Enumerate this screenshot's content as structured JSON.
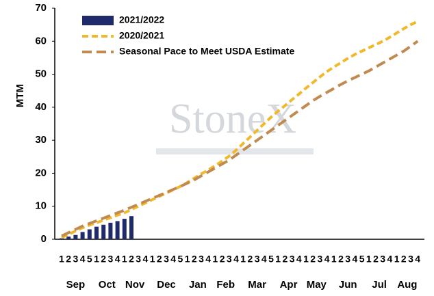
{
  "chart_data": {
    "type": "bar",
    "y_label": "MTM",
    "watermark": "StoneX",
    "categories": [
      "1",
      "2",
      "3",
      "4",
      "5",
      "1",
      "2",
      "3",
      "4",
      "1",
      "2",
      "3",
      "4",
      "1",
      "2",
      "3",
      "4",
      "5",
      "1",
      "2",
      "3",
      "4",
      "1",
      "2",
      "3",
      "4",
      "1",
      "2",
      "3",
      "4",
      "5",
      "1",
      "2",
      "3",
      "4",
      "1",
      "2",
      "3",
      "4",
      "1",
      "2",
      "3",
      "4",
      "5",
      "1",
      "2",
      "3",
      "4",
      "1",
      "2",
      "3",
      "4"
    ],
    "months": [
      "Sep",
      "Oct",
      "Nov",
      "Dec",
      "Jan",
      "Feb",
      "Mar",
      "Apr",
      "May",
      "Jun",
      "Jul",
      "Aug"
    ],
    "series": [
      {
        "name": "2021/2022",
        "type": "bar",
        "color": "#1f2a6b",
        "values": [
          0.3,
          0.8,
          1.3,
          2.2,
          3.0,
          3.8,
          4.4,
          5.0,
          5.5,
          6.2,
          7.0,
          null,
          null,
          null,
          null,
          null,
          null,
          null,
          null,
          null,
          null,
          null,
          null,
          null,
          null,
          null,
          null,
          null,
          null,
          null,
          null,
          null,
          null,
          null,
          null,
          null,
          null,
          null,
          null,
          null,
          null,
          null,
          null,
          null,
          null,
          null,
          null,
          null,
          null,
          null,
          null,
          null
        ]
      },
      {
        "name": "2020/2021",
        "type": "line",
        "color": "#f0b92c",
        "values": [
          0.5,
          1.5,
          2.5,
          3.5,
          4.3,
          5.0,
          5.8,
          6.5,
          7.3,
          8.0,
          9.0,
          10.0,
          11.0,
          12.0,
          13.0,
          14.0,
          15.0,
          16.0,
          17.2,
          18.5,
          19.8,
          21.0,
          22.3,
          23.7,
          25.2,
          27.0,
          29.0,
          31.0,
          33.0,
          35.0,
          37.0,
          38.8,
          40.5,
          42.3,
          44.0,
          45.8,
          47.5,
          49.2,
          50.8,
          52.2,
          53.5,
          54.8,
          56.0,
          57.0,
          58.0,
          59.0,
          60.0,
          61.2,
          62.5,
          63.8,
          65.0,
          66.0
        ]
      },
      {
        "name": "Seasonal Pace to Meet USDA Estimate",
        "type": "line",
        "color": "#c08a50",
        "values": [
          1.0,
          2.0,
          3.0,
          4.0,
          4.8,
          5.6,
          6.4,
          7.2,
          8.0,
          8.8,
          9.7,
          10.6,
          11.5,
          12.4,
          13.3,
          14.2,
          15.1,
          16.0,
          17.0,
          18.0,
          19.2,
          20.4,
          21.6,
          22.8,
          24.0,
          25.5,
          27.0,
          28.5,
          30.0,
          31.5,
          33.0,
          34.5,
          36.0,
          37.5,
          39.0,
          40.5,
          42.0,
          43.3,
          44.5,
          45.7,
          46.9,
          48.0,
          49.0,
          50.0,
          51.0,
          52.2,
          53.4,
          54.6,
          55.8,
          57.0,
          58.5,
          60.0
        ]
      }
    ],
    "ylim": [
      0,
      70
    ],
    "yticks": [
      0,
      10,
      20,
      30,
      40,
      50,
      60,
      70
    ],
    "legend": "upper left"
  }
}
